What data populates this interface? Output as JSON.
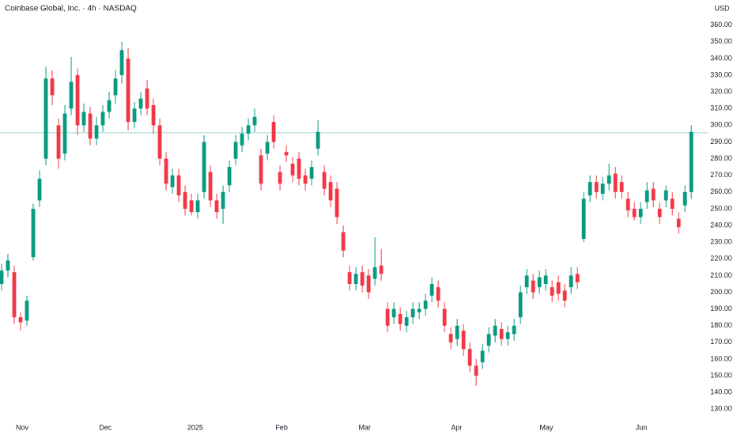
{
  "chart_data": {
    "type": "candlestick",
    "title": "Coinbase Global, Inc. · 4h · NASDAQ",
    "currency": "USD",
    "up_color": "#089981",
    "down_color": "#f23645",
    "price_line": 295.5,
    "price_line_color": "#9fd8d4",
    "xlim": [
      -0.25,
      111.6
    ],
    "xticks": [
      {
        "value": 3.25,
        "label": "Nov"
      },
      {
        "value": 16.4,
        "label": "Dec"
      },
      {
        "value": 30.6,
        "label": "2025"
      },
      {
        "value": 44.25,
        "label": "Feb"
      },
      {
        "value": 57.4,
        "label": "Mar"
      },
      {
        "value": 71.9,
        "label": "Apr"
      },
      {
        "value": 86.1,
        "label": "May"
      },
      {
        "value": 101.1,
        "label": "Jun"
      }
    ],
    "ylim": [
      124,
      375
    ],
    "yticks": [
      {
        "value": 130,
        "label": "130.00"
      },
      {
        "value": 140,
        "label": "140.00"
      },
      {
        "value": 150,
        "label": "150.00"
      },
      {
        "value": 160,
        "label": "160.00"
      },
      {
        "value": 170,
        "label": "170.00"
      },
      {
        "value": 180,
        "label": "180.00"
      },
      {
        "value": 190,
        "label": "190.00"
      },
      {
        "value": 200,
        "label": "200.00"
      },
      {
        "value": 210,
        "label": "210.00"
      },
      {
        "value": 220,
        "label": "220.00"
      },
      {
        "value": 230,
        "label": "230.00"
      },
      {
        "value": 240,
        "label": "240.00"
      },
      {
        "value": 250,
        "label": "250.00"
      },
      {
        "value": 260,
        "label": "260.00"
      },
      {
        "value": 270,
        "label": "270.00"
      },
      {
        "value": 280,
        "label": "280.00"
      },
      {
        "value": 290,
        "label": "290.00"
      },
      {
        "value": 300,
        "label": "300.00"
      },
      {
        "value": 310,
        "label": "310.00"
      },
      {
        "value": 320,
        "label": "320.00"
      },
      {
        "value": 330,
        "label": "330.00"
      },
      {
        "value": 340,
        "label": "340.00"
      },
      {
        "value": 350,
        "label": "350.00"
      },
      {
        "value": 360,
        "label": "360.00"
      }
    ],
    "open": [
      205,
      213,
      212,
      185,
      183,
      221,
      255,
      280,
      328,
      300,
      283,
      310,
      330,
      300,
      307,
      292,
      300,
      308,
      318,
      330,
      340,
      302,
      310,
      322,
      312,
      300,
      280,
      263,
      270,
      260,
      255,
      248,
      260,
      272,
      255,
      250,
      264,
      280,
      288,
      295,
      300,
      282,
      283,
      302,
      272,
      284,
      277,
      280,
      270,
      268,
      286,
      272,
      266,
      262,
      236,
      212,
      205,
      212,
      210,
      208,
      216,
      190,
      185,
      187,
      180,
      185,
      188,
      190,
      198,
      203,
      190,
      175,
      172,
      177,
      166,
      156,
      158,
      168,
      174,
      178,
      172,
      175,
      185,
      203,
      207,
      203,
      205,
      203,
      206,
      201,
      203,
      211,
      232,
      258,
      266,
      259,
      265,
      271,
      266,
      256,
      250,
      245,
      254,
      262,
      250,
      255,
      256,
      244,
      252,
      260
    ],
    "high": [
      217,
      223,
      216,
      188,
      198,
      253,
      273,
      335,
      333,
      304,
      312,
      341,
      334,
      313,
      311,
      305,
      312,
      320,
      333,
      350,
      346,
      314,
      320,
      327,
      316,
      304,
      284,
      274,
      274,
      264,
      259,
      259,
      294,
      276,
      259,
      264,
      279,
      294,
      299,
      304,
      310,
      286,
      294,
      306,
      276,
      288,
      281,
      284,
      274,
      279,
      303,
      276,
      270,
      266,
      240,
      216,
      215,
      216,
      214,
      233,
      226,
      194,
      194,
      191,
      189,
      194,
      194,
      199,
      209,
      207,
      194,
      179,
      184,
      181,
      170,
      160,
      169,
      179,
      184,
      182,
      180,
      184,
      204,
      214,
      211,
      213,
      214,
      207,
      210,
      205,
      215,
      215,
      260,
      270,
      270,
      269,
      277,
      275,
      270,
      260,
      254,
      254,
      266,
      266,
      254,
      264,
      260,
      248,
      264,
      300
    ],
    "low": [
      201,
      209,
      181,
      177,
      180,
      219,
      251,
      276,
      312,
      274,
      279,
      306,
      294,
      296,
      288,
      288,
      296,
      304,
      313,
      325,
      297,
      298,
      306,
      306,
      295,
      276,
      261,
      259,
      254,
      246,
      246,
      244,
      256,
      251,
      244,
      241,
      260,
      276,
      284,
      291,
      296,
      261,
      279,
      286,
      261,
      278,
      266,
      264,
      261,
      264,
      282,
      258,
      251,
      241,
      221,
      201,
      201,
      200,
      196,
      204,
      207,
      176,
      181,
      177,
      176,
      181,
      184,
      186,
      194,
      191,
      176,
      166,
      168,
      162,
      152,
      144,
      154,
      164,
      170,
      168,
      168,
      171,
      181,
      199,
      196,
      199,
      201,
      194,
      195,
      191,
      199,
      202,
      230,
      254,
      256,
      255,
      261,
      256,
      256,
      245,
      243,
      241,
      250,
      251,
      241,
      251,
      246,
      235,
      248,
      256
    ],
    "close": [
      213,
      219,
      185,
      182,
      195,
      250,
      268,
      328,
      318,
      280,
      307,
      326,
      300,
      308,
      292,
      300,
      308,
      315,
      328,
      345,
      302,
      310,
      316,
      310,
      300,
      280,
      265,
      270,
      258,
      250,
      248,
      255,
      290,
      255,
      248,
      260,
      275,
      290,
      295,
      300,
      305,
      265,
      290,
      290,
      265,
      282,
      270,
      268,
      265,
      275,
      296,
      262,
      255,
      245,
      225,
      205,
      211,
      204,
      200,
      215,
      211,
      180,
      190,
      181,
      185,
      190,
      190,
      195,
      205,
      195,
      180,
      170,
      180,
      166,
      156,
      150,
      165,
      175,
      180,
      172,
      176,
      180,
      200,
      210,
      200,
      209,
      210,
      198,
      199,
      195,
      210,
      206,
      256,
      266,
      260,
      265,
      270,
      260,
      260,
      249,
      245,
      250,
      261,
      255,
      245,
      261,
      250,
      239,
      260,
      296
    ]
  }
}
